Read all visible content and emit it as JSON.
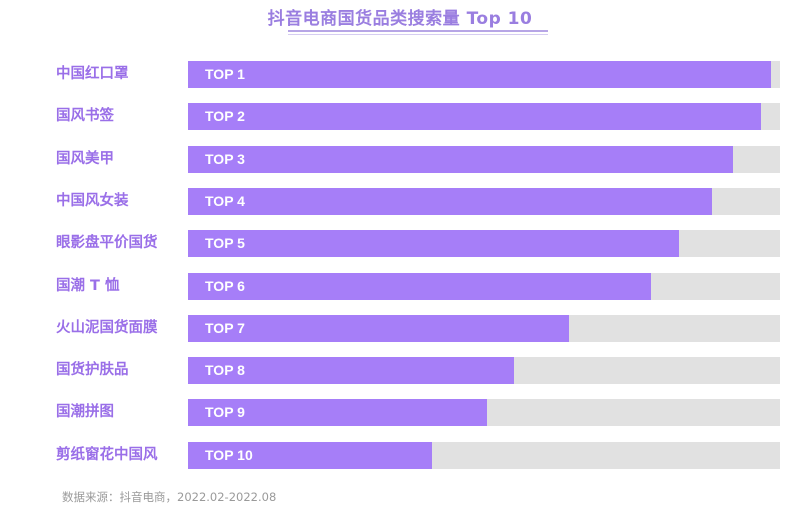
{
  "chart_data": {
    "type": "bar",
    "orientation": "horizontal",
    "title": "抖音电商国货品类搜索量 Top 10",
    "categories": [
      "中国红口罩",
      "国风书签",
      "国风美甲",
      "中国风女装",
      "眼影盘平价国货",
      "国潮 T 恤",
      "火山泥国货面膜",
      "国货护肤品",
      "国潮拼图",
      "剪纸窗花中国风"
    ],
    "bar_labels": [
      "TOP 1",
      "TOP 2",
      "TOP 3",
      "TOP 4",
      "TOP 5",
      "TOP 6",
      "TOP 7",
      "TOP 8",
      "TOP 9",
      "TOP 10"
    ],
    "values": [
      98.5,
      96.8,
      92.1,
      88.5,
      82.9,
      78.2,
      64.4,
      55.1,
      50.5,
      41.2
    ],
    "value_unit": "relative search volume (% of track, estimated)",
    "xlabel": "",
    "ylabel": "",
    "xlim": [
      0,
      100
    ],
    "grid": false,
    "legend": "none",
    "source_note": "数据来源：抖音电商，2022.02-2022.08"
  },
  "colors": {
    "title": "#9a7ee0",
    "label": "#9a6fe8",
    "bar": "#a67ef8",
    "track": "#e1e1e1",
    "source": "#9a9a9a"
  },
  "header": {
    "title": "抖音电商国货品类搜索量 Top 10"
  },
  "rows": [
    {
      "label": "中国红口罩",
      "rank": "TOP 1",
      "value": 98.5
    },
    {
      "label": "国风书签",
      "rank": "TOP 2",
      "value": 96.8
    },
    {
      "label": "国风美甲",
      "rank": "TOP 3",
      "value": 92.1
    },
    {
      "label": "中国风女装",
      "rank": "TOP 4",
      "value": 88.5
    },
    {
      "label": "眼影盘平价国货",
      "rank": "TOP 5",
      "value": 82.9
    },
    {
      "label": "国潮 T 恤",
      "rank": "TOP 6",
      "value": 78.2
    },
    {
      "label": "火山泥国货面膜",
      "rank": "TOP 7",
      "value": 64.4
    },
    {
      "label": "国货护肤品",
      "rank": "TOP 8",
      "value": 55.1
    },
    {
      "label": "国潮拼图",
      "rank": "TOP 9",
      "value": 50.5
    },
    {
      "label": "剪纸窗花中国风",
      "rank": "TOP 10",
      "value": 41.2
    }
  ],
  "footer": {
    "source": "数据来源：抖音电商，2022.02-2022.08"
  }
}
